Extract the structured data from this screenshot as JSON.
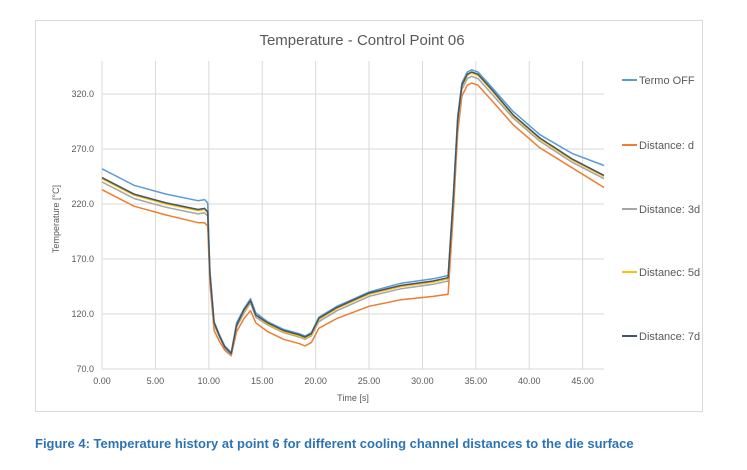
{
  "caption": "Figure 4: Temperature history at point 6 for different cooling channel distances to the die surface",
  "colors": {
    "termo_off": "#5b9bd5",
    "distance_d": "#ed7d31",
    "distance_3d": "#a5a5a5",
    "distance_5d": "#ffc000",
    "distance_7d": "#44546a",
    "grid": "#d9d9d9",
    "axis_text": "#595959"
  },
  "chart_data": {
    "type": "line",
    "title": "Temperature - Control Point 06",
    "xlabel": "Time [s]",
    "ylabel": "Temperature [°C]",
    "xlim": [
      0,
      47
    ],
    "ylim": [
      70,
      350
    ],
    "xticks": [
      0,
      5,
      10,
      15,
      20,
      25,
      30,
      35,
      40,
      45
    ],
    "xtick_labels": [
      "0.00",
      "5.00",
      "10.00",
      "15.00",
      "20.00",
      "25.00",
      "30.00",
      "35.00",
      "40.00",
      "45.00"
    ],
    "yticks": [
      70,
      120,
      170,
      220,
      270,
      320
    ],
    "ytick_labels": [
      "70.0",
      "120.0",
      "170.0",
      "220.0",
      "270.0",
      "320.0"
    ],
    "grid": true,
    "legend_position": "right",
    "series": [
      {
        "name": "Termo OFF",
        "color": "#5b9bd5",
        "x": [
          0,
          3,
          6,
          9,
          9.6,
          9.9,
          10.1,
          10.5,
          11,
          11.5,
          12.1,
          12.6,
          13.3,
          13.9,
          14.4,
          15.5,
          17,
          18.5,
          19,
          19.6,
          20.3,
          22,
          25,
          28,
          31,
          32.4,
          32.9,
          33.3,
          33.7,
          34.2,
          34.6,
          35.2,
          36.5,
          38.5,
          41,
          44,
          47
        ],
        "y": [
          252,
          237,
          229,
          223,
          224,
          221,
          160,
          113,
          101,
          91,
          85,
          112,
          125,
          134,
          121,
          113,
          106,
          102,
          100,
          103,
          117,
          127,
          140,
          148,
          152,
          155,
          230,
          300,
          330,
          340,
          342,
          340,
          326,
          304,
          283,
          266,
          255
        ]
      },
      {
        "name": "Distance: d",
        "color": "#ed7d31",
        "x": [
          0,
          3,
          6,
          9,
          9.6,
          9.9,
          10.1,
          10.5,
          11,
          11.5,
          12.1,
          12.6,
          13.3,
          13.9,
          14.4,
          15.5,
          17,
          18.5,
          19,
          19.6,
          20.3,
          22,
          25,
          28,
          31,
          32.4,
          32.9,
          33.3,
          33.7,
          34.2,
          34.6,
          35.2,
          36.5,
          38.5,
          41,
          44,
          47
        ],
        "y": [
          233,
          218,
          210,
          203,
          203,
          200,
          148,
          105,
          95,
          87,
          82,
          104,
          116,
          123,
          112,
          104,
          97,
          93,
          91,
          94,
          107,
          116,
          127,
          133,
          136,
          138,
          213,
          285,
          318,
          328,
          330,
          328,
          314,
          292,
          271,
          253,
          235
        ]
      },
      {
        "name": "Distance: 3d",
        "color": "#a5a5a5",
        "x": [
          0,
          3,
          6,
          9,
          9.6,
          9.9,
          10.1,
          10.5,
          11,
          11.5,
          12.1,
          12.6,
          13.3,
          13.9,
          14.4,
          15.5,
          17,
          18.5,
          19,
          19.6,
          20.3,
          22,
          25,
          28,
          31,
          32.4,
          32.9,
          33.3,
          33.7,
          34.2,
          34.6,
          35.2,
          36.5,
          38.5,
          41,
          44,
          47
        ],
        "y": [
          240,
          225,
          217,
          211,
          212,
          209,
          154,
          110,
          99,
          89,
          83,
          108,
          121,
          130,
          117,
          110,
          103,
          99,
          97,
          100,
          113,
          123,
          136,
          143,
          147,
          150,
          224,
          293,
          324,
          334,
          336,
          334,
          320,
          298,
          277,
          258,
          243
        ]
      },
      {
        "name": "Distanec: 5d",
        "color": "#ffc000",
        "x": [
          0,
          3,
          6,
          9,
          9.6,
          9.9,
          10.1,
          10.5,
          11,
          11.5,
          12.1,
          12.6,
          13.3,
          13.9,
          14.4,
          15.5,
          17,
          18.5,
          19,
          19.6,
          20.3,
          22,
          25,
          28,
          31,
          32.4,
          32.9,
          33.3,
          33.7,
          34.2,
          34.6,
          35.2,
          36.5,
          38.5,
          41,
          44,
          47
        ],
        "y": [
          243,
          228,
          220,
          214,
          215,
          212,
          156,
          111,
          100,
          90,
          84,
          110,
          123,
          131,
          119,
          111,
          104,
          100,
          98,
          101,
          115,
          125,
          138,
          145,
          149,
          152,
          226,
          296,
          327,
          337,
          339,
          337,
          323,
          300,
          279,
          260,
          245
        ]
      },
      {
        "name": "Distance: 7d",
        "color": "#44546a",
        "x": [
          0,
          3,
          6,
          9,
          9.6,
          9.9,
          10.1,
          10.5,
          11,
          11.5,
          12.1,
          12.6,
          13.3,
          13.9,
          14.4,
          15.5,
          17,
          18.5,
          19,
          19.6,
          20.3,
          22,
          25,
          28,
          31,
          32.4,
          32.9,
          33.3,
          33.7,
          34.2,
          34.6,
          35.2,
          36.5,
          38.5,
          41,
          44,
          47
        ],
        "y": [
          244,
          229,
          221,
          215,
          216,
          213,
          157,
          112,
          100,
          90,
          84,
          110,
          124,
          132,
          119,
          112,
          105,
          101,
          99,
          102,
          116,
          126,
          139,
          146,
          150,
          153,
          227,
          297,
          328,
          338,
          340,
          338,
          324,
          301,
          280,
          261,
          246
        ]
      }
    ]
  }
}
